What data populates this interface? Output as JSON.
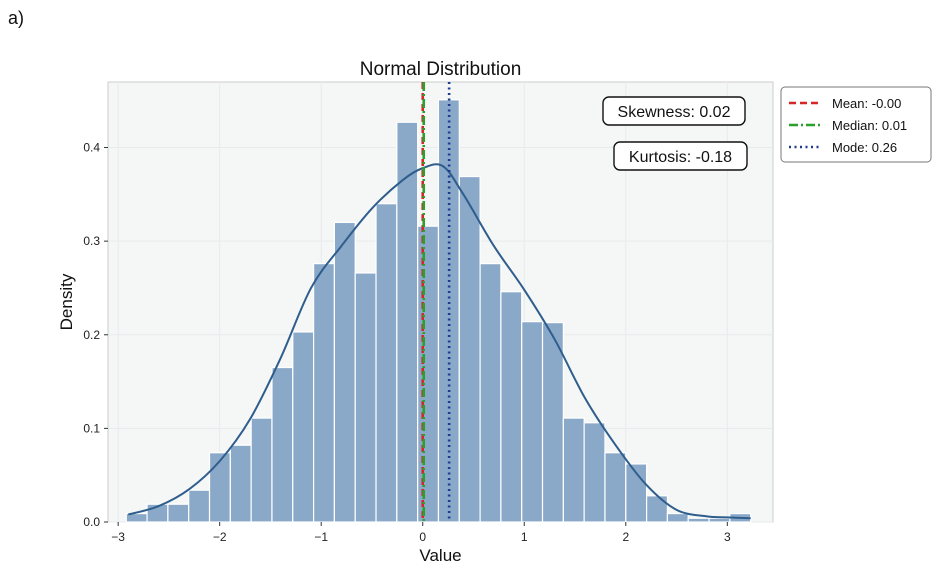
{
  "panel_label": "a)",
  "chart_data": {
    "type": "bar",
    "title": "Normal Distribution",
    "xlabel": "Value",
    "ylabel": "Density",
    "xlim": [
      -3.1,
      3.45
    ],
    "ylim": [
      0,
      0.47
    ],
    "xticks": [
      -3,
      -2,
      -1,
      0,
      1,
      2,
      3
    ],
    "xtick_labels": [
      "−3",
      "−2",
      "−1",
      "0",
      "1",
      "2",
      "3"
    ],
    "yticks": [
      0.0,
      0.1,
      0.2,
      0.3,
      0.4
    ],
    "ytick_labels": [
      "0.0",
      "0.1",
      "0.2",
      "0.3",
      "0.4"
    ],
    "grid": true,
    "bin_edges": [
      -2.92,
      -2.715,
      -2.51,
      -2.305,
      -2.1,
      -1.895,
      -1.69,
      -1.485,
      -1.28,
      -1.075,
      -0.87,
      -0.665,
      -0.46,
      -0.255,
      -0.05,
      0.155,
      0.36,
      0.565,
      0.77,
      0.975,
      1.18,
      1.385,
      1.59,
      1.795,
      2.0,
      2.205,
      2.41,
      2.615,
      2.82,
      3.025,
      3.23
    ],
    "density": [
      0.009,
      0.019,
      0.019,
      0.034,
      0.074,
      0.082,
      0.111,
      0.165,
      0.203,
      0.276,
      0.32,
      0.266,
      0.34,
      0.427,
      0.316,
      0.451,
      0.369,
      0.276,
      0.246,
      0.214,
      0.213,
      0.111,
      0.106,
      0.074,
      0.062,
      0.028,
      0.009,
      0.004,
      0.004,
      0.009
    ],
    "kde": {
      "x": [
        -2.9,
        -2.6,
        -2.3,
        -2.0,
        -1.7,
        -1.4,
        -1.1,
        -0.8,
        -0.5,
        -0.2,
        0.0,
        0.2,
        0.4,
        0.7,
        1.0,
        1.3,
        1.6,
        1.9,
        2.2,
        2.5,
        2.8,
        3.0,
        3.23
      ],
      "y": [
        0.008,
        0.017,
        0.035,
        0.065,
        0.11,
        0.175,
        0.25,
        0.295,
        0.335,
        0.365,
        0.378,
        0.38,
        0.35,
        0.295,
        0.248,
        0.195,
        0.132,
        0.082,
        0.04,
        0.013,
        0.006,
        0.005,
        0.004
      ]
    },
    "reference_lines": [
      {
        "name": "Mean",
        "value": -0.0,
        "label": "Mean: -0.00",
        "style": "dashed",
        "color": "#d62728"
      },
      {
        "name": "Median",
        "value": 0.01,
        "label": "Median: 0.01",
        "style": "dashdot",
        "color": "#2ca02c"
      },
      {
        "name": "Mode",
        "value": 0.26,
        "label": "Mode: 0.26",
        "style": "dotted",
        "color": "#1f3a93"
      }
    ],
    "annotations": [
      "Skewness: 0.02",
      "Kurtosis: -0.18"
    ],
    "legend_position": "outside-right-top",
    "colors": {
      "bar_fill": "#8aa9c9",
      "bar_edge": "#ffffff",
      "kde_line": "#2f5d8c",
      "plot_bg": "#f5f7f7",
      "grid": "#ffffff"
    }
  }
}
